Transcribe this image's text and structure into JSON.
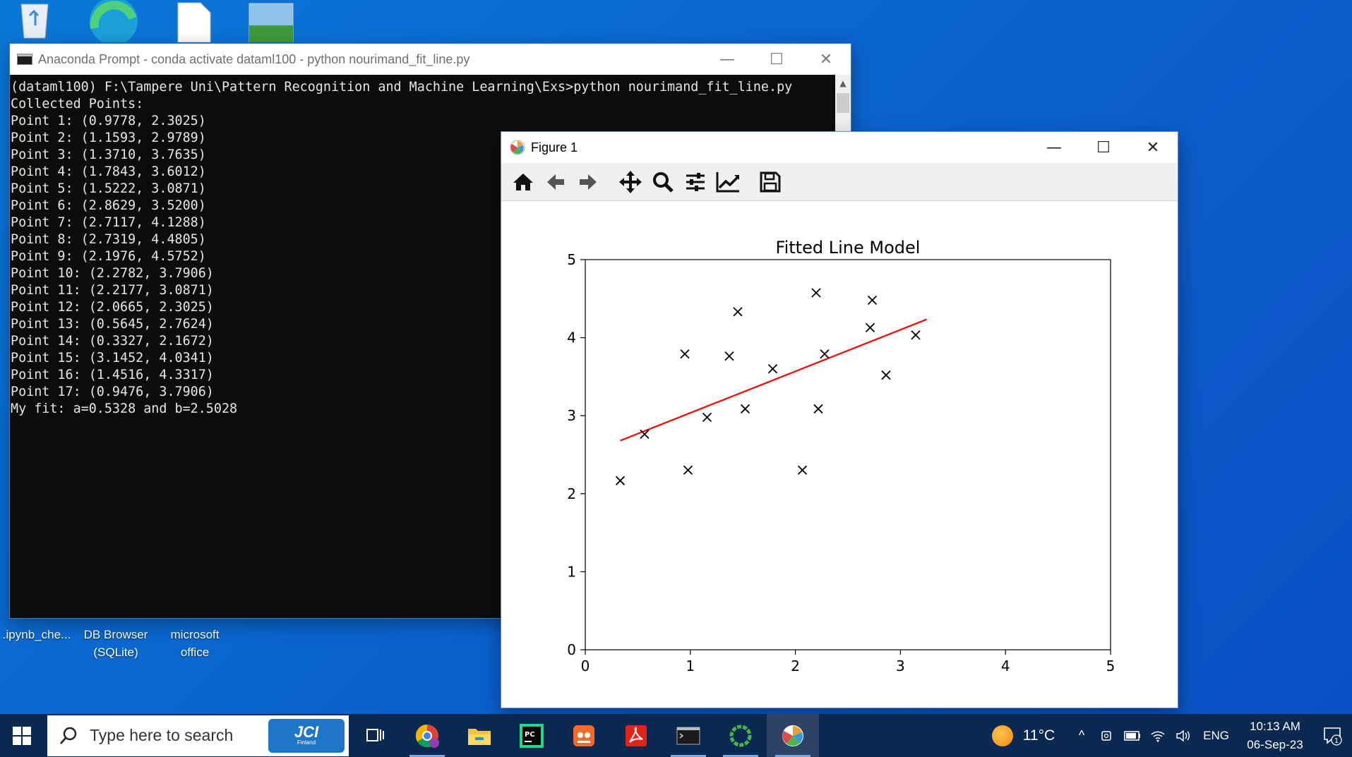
{
  "desktop": {
    "icons": [
      {
        "label": ".ipynb_che..."
      },
      {
        "label": "DB Browser (SQLite)"
      },
      {
        "label": "microsoft office"
      }
    ]
  },
  "console": {
    "title": "Anaconda Prompt - conda  activate dataml100 - python  nourimand_fit_line.py",
    "lines": [
      "(dataml100) F:\\Tampere Uni\\Pattern Recognition and Machine Learning\\Exs>python nourimand_fit_line.py",
      "Collected Points:",
      "Point 1: (0.9778, 2.3025)",
      "Point 2: (1.1593, 2.9789)",
      "Point 3: (1.3710, 3.7635)",
      "Point 4: (1.7843, 3.6012)",
      "Point 5: (1.5222, 3.0871)",
      "Point 6: (2.8629, 3.5200)",
      "Point 7: (2.7117, 4.1288)",
      "Point 8: (2.7319, 4.4805)",
      "Point 9: (2.1976, 4.5752)",
      "Point 10: (2.2782, 3.7906)",
      "Point 11: (2.2177, 3.0871)",
      "Point 12: (2.0665, 2.3025)",
      "Point 13: (0.5645, 2.7624)",
      "Point 14: (0.3327, 2.1672)",
      "Point 15: (3.1452, 4.0341)",
      "Point 16: (1.4516, 4.3317)",
      "Point 17: (0.9476, 3.7906)",
      "My fit: a=0.5328 and b=2.5028"
    ]
  },
  "figure": {
    "title": "Figure 1",
    "toolbar": [
      "home-icon",
      "back-icon",
      "forward-icon",
      "pan-icon",
      "zoom-icon",
      "configure-subplots-icon",
      "edit-axis-icon",
      "save-icon"
    ]
  },
  "chart_data": {
    "type": "scatter",
    "title": "Fitted Line Model",
    "xlabel": "",
    "ylabel": "",
    "xlim": [
      0,
      5
    ],
    "ylim": [
      0,
      5
    ],
    "xticks": [
      0,
      1,
      2,
      3,
      4,
      5
    ],
    "yticks": [
      0,
      1,
      2,
      3,
      4,
      5
    ],
    "grid": false,
    "series": [
      {
        "marker": "x",
        "color": "#000000",
        "points": [
          [
            0.9778,
            2.3025
          ],
          [
            1.1593,
            2.9789
          ],
          [
            1.371,
            3.7635
          ],
          [
            1.7843,
            3.6012
          ],
          [
            1.5222,
            3.0871
          ],
          [
            2.8629,
            3.52
          ],
          [
            2.7117,
            4.1288
          ],
          [
            2.7319,
            4.4805
          ],
          [
            2.1976,
            4.5752
          ],
          [
            2.2782,
            3.7906
          ],
          [
            2.2177,
            3.0871
          ],
          [
            2.0665,
            2.3025
          ],
          [
            0.5645,
            2.7624
          ],
          [
            0.3327,
            2.1672
          ],
          [
            3.1452,
            4.0341
          ],
          [
            1.4516,
            4.3317
          ],
          [
            0.9476,
            3.7906
          ]
        ]
      }
    ],
    "line": {
      "color": "#ff0000",
      "a": 0.5328,
      "b": 2.5028,
      "x_range": [
        0.3327,
        3.25
      ]
    }
  },
  "taskbar": {
    "search_placeholder": "Type here to search",
    "search_badge": "JCI",
    "search_badge_sub": "Finland",
    "weather": "11°C",
    "language": "ENG",
    "time": "10:13 AM",
    "date": "06-Sep-23",
    "notifications": "1"
  }
}
